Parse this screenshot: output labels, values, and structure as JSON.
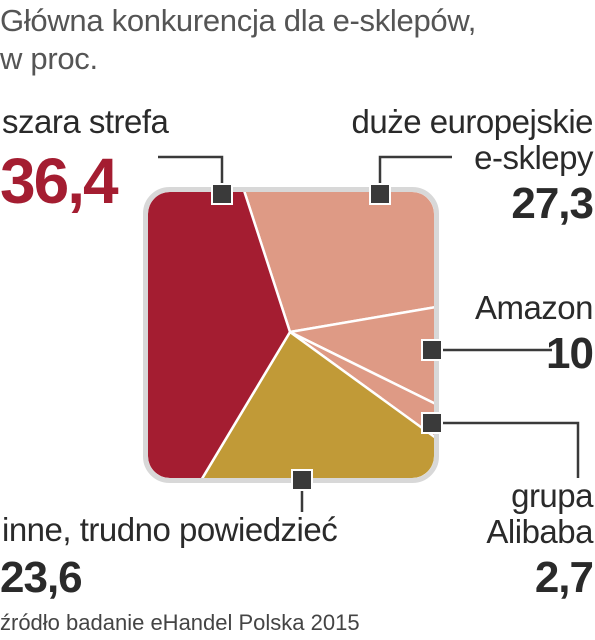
{
  "title_line1": "Główna konkurencja dla e-sklepów,",
  "title_line2": "w proc.",
  "source": "źródło badanie eHandel Polska 2015",
  "colors": {
    "szara_strefa": "#a41d31",
    "duze": "#de9a85",
    "amazon": "#de9a85",
    "alibaba": "#de9a85",
    "inne": "#c19a37",
    "marker": "#3a3a3a",
    "accent": "#a41d31"
  },
  "chart_data": {
    "type": "pie",
    "title": "Główna konkurencja dla e-sklepów, w proc.",
    "shape": "rounded-square",
    "categories": [
      "szara strefa",
      "duże europejskie e-sklepy",
      "Amazon",
      "grupa Alibaba",
      "inne, trudno powiedzieć"
    ],
    "values": [
      36.4,
      27.3,
      10,
      2.7,
      23.6
    ],
    "value_labels": [
      "36,4",
      "27,3",
      "10",
      "2,7",
      "23,6"
    ],
    "label_lines": {
      "szara_strefa": [
        "szara strefa"
      ],
      "duze": [
        "duże europejskie",
        "e-sklepy"
      ],
      "amazon": [
        "Amazon"
      ],
      "alibaba": [
        "grupa",
        "Alibaba"
      ],
      "inne": [
        "inne, trudno powiedzieć"
      ]
    }
  }
}
